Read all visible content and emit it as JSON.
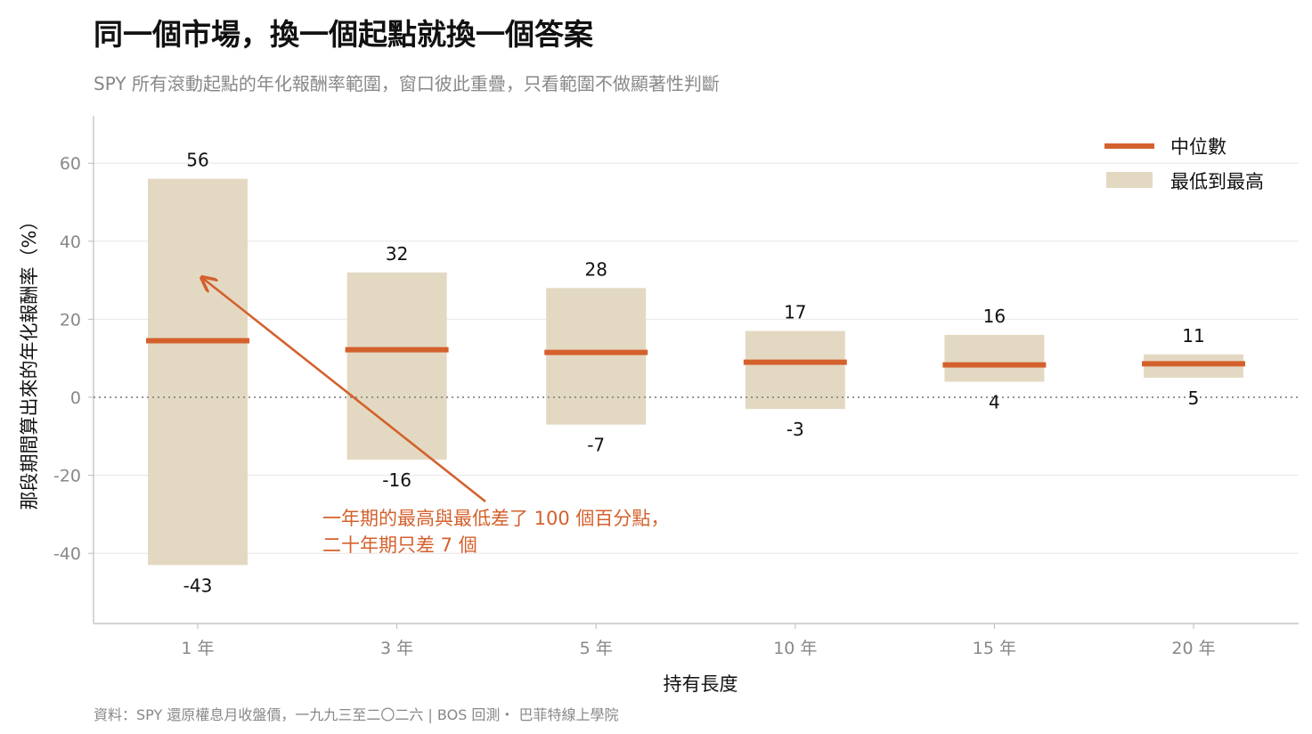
{
  "title": "同一個市場，換一個起點就換一個答案",
  "subtitle": "SPY 所有滾動起點的年化報酬率範圍，窗口彼此重疊，只看範圍不做顯著性判斷",
  "source": "資料：SPY 還原權息月收盤價，一九九三至二〇二六 | BOS 回測・ 巴菲特線上學院",
  "colors": {
    "median": "#d4612d",
    "range": "#e3d9c2",
    "grid": "#e6e6e6",
    "zero": "#888888",
    "annotation": "#d4612d"
  },
  "chart_data": {
    "type": "bar",
    "subtype": "floating range bars with median line",
    "xlabel": "持有長度",
    "ylabel": "那段期間算出來的年化報酬率（%）",
    "ylim": [
      -58,
      72
    ],
    "yticks": [
      -40,
      -20,
      0,
      20,
      40,
      60
    ],
    "categories": [
      "1 年",
      "3 年",
      "5 年",
      "10 年",
      "15 年",
      "20 年"
    ],
    "series": [
      {
        "name": "最低到最高",
        "low": [
          -43,
          -16,
          -7,
          -3,
          4,
          5
        ],
        "high": [
          56,
          32,
          28,
          17,
          16,
          11
        ]
      },
      {
        "name": "中位數",
        "values": [
          14.5,
          12.2,
          11.5,
          9.0,
          8.3,
          8.6
        ]
      }
    ],
    "legend": {
      "position": "top-right",
      "entries": [
        "中位數",
        "最低到最高"
      ]
    },
    "grid": true,
    "reference_line": 0,
    "annotation": {
      "lines": [
        "一年期的最高與最低差了 100 個百分點，",
        "二十年期只差 7 個"
      ],
      "arrow_target": {
        "category": "1 年",
        "y": 30
      }
    }
  }
}
